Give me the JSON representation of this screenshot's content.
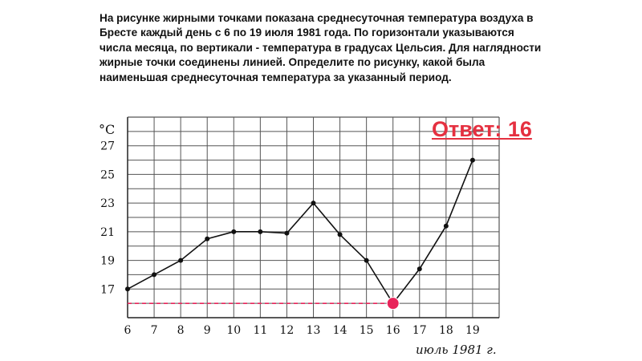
{
  "task_text": "На рисунке жирными точками показана среднесуточная температура воздуха в Бресте каждый день с 6 по 19 июля 1981 года. По горизонтали указываются числа месяца, по вертикали - температура в градусах Цельсия. Для наглядности жирные точки соединены линией. Определите по рисунку, какой была наименьшая среднесуточная температура за указанный период.",
  "answer_label": "Ответ: 16",
  "colors": {
    "line": "#111111",
    "grid": "#555555",
    "highlight": "#e8245a",
    "answer": "#e53040"
  },
  "chart_data": {
    "type": "line",
    "title": "",
    "xlabel": "июль 1981 г.",
    "ylabel": "°C",
    "x": [
      6,
      7,
      8,
      9,
      10,
      11,
      12,
      13,
      14,
      15,
      16,
      17,
      18,
      19
    ],
    "series": [
      {
        "values": [
          17,
          18,
          19,
          20.5,
          21,
          21,
          20.9,
          23,
          20.8,
          19,
          16,
          18.4,
          21.4,
          26
        ]
      }
    ],
    "x_ticks": [
      "6",
      "7",
      "8",
      "9",
      "10",
      "11",
      "12",
      "13",
      "14",
      "15",
      "16",
      "17",
      "18",
      "19"
    ],
    "y_ticks": [
      "17",
      "19",
      "21",
      "23",
      "25",
      "27"
    ],
    "xlim": [
      6,
      20
    ],
    "ylim": [
      15,
      29
    ],
    "grid": true,
    "highlight": {
      "x": 16,
      "y": 16
    }
  }
}
